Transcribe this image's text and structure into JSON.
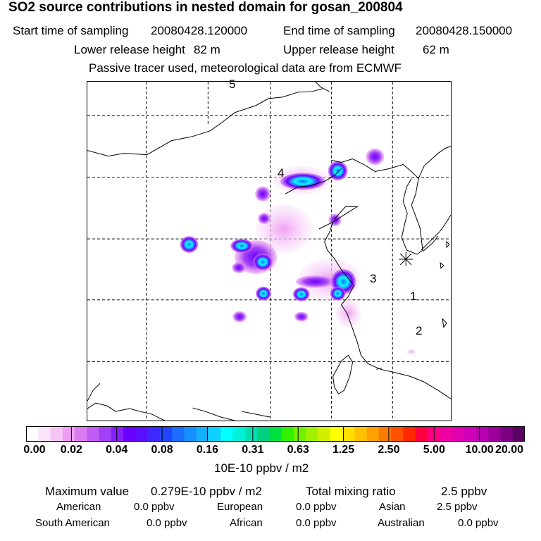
{
  "title": "SO2 source contributions in nested domain for gosan_200804",
  "sampling": {
    "start_label": "Start time of sampling",
    "start_value": "20080428.120000",
    "end_label": "End time of sampling",
    "end_value": "20080428.150000"
  },
  "release": {
    "lower_label": "Lower release height",
    "lower_value": "82 m",
    "upper_label": "Upper release height",
    "upper_value": "62 m"
  },
  "note": "Passive tracer used, meteorological data are from ECMWF",
  "map": {
    "receptor_marker": "gosan-receptor-star-icon",
    "trajectory_labels": [
      "5",
      "4",
      "3",
      "1",
      "2"
    ]
  },
  "colorbar": {
    "ticks": [
      "0.00",
      "0.02",
      "0.04",
      "0.08",
      "0.16",
      "0.31",
      "0.63",
      "1.25",
      "2.50",
      "5.00",
      "10.00",
      "20.00"
    ],
    "unit": "10E-10 ppbv / m2",
    "colors": [
      "#ffffff",
      "#fbe3fb",
      "#f5c6f5",
      "#ee9ff1",
      "#d97cf2",
      "#bf5df5",
      "#a240f7",
      "#8520f9",
      "#6a00ff",
      "#5a10ff",
      "#3f28ff",
      "#2044ff",
      "#1a6dff",
      "#168fff",
      "#14b0ff",
      "#10d0ff",
      "#00ffff",
      "#00f0d8",
      "#00e0b0",
      "#00d080",
      "#00e040",
      "#30f000",
      "#70f000",
      "#a0f000",
      "#d0f000",
      "#ffff00",
      "#ffe000",
      "#ffc000",
      "#ffa000",
      "#ff7a00",
      "#ff5000",
      "#ff2800",
      "#ff0040",
      "#ff0080",
      "#f000a0",
      "#e000b0",
      "#d000b8",
      "#b800b0",
      "#9a0098",
      "#7a0080",
      "#5a0060"
    ]
  },
  "stats": {
    "max_label": "Maximum value",
    "max_value": "0.279E-10 ppbv / m2",
    "total_label": "Total mixing ratio",
    "total_value": "2.5 ppbv",
    "regions": [
      {
        "name": "American",
        "value": "0.0 ppbv"
      },
      {
        "name": "European",
        "value": "0.0 ppbv"
      },
      {
        "name": "Asian",
        "value": "2.5 ppbv"
      },
      {
        "name": "South American",
        "value": "0.0 ppbv"
      },
      {
        "name": "African",
        "value": "0.0 ppbv"
      },
      {
        "name": "Australian",
        "value": "0.0 ppbv"
      }
    ]
  }
}
